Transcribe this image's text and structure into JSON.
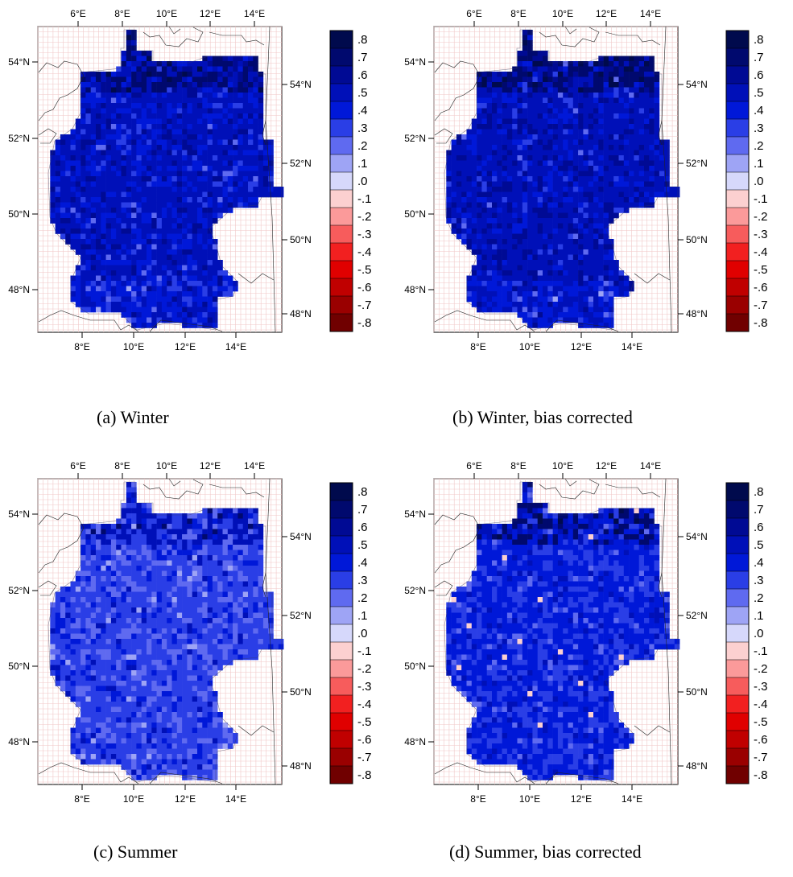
{
  "figure": {
    "panels": [
      {
        "id": "a",
        "caption": "(a) Winter",
        "tiles": [
          {
            "level": 0.5,
            "weight": 0.55
          },
          {
            "level": 0.4,
            "weight": 0.25
          },
          {
            "level": 0.6,
            "weight": 0.12
          },
          {
            "level": 0.3,
            "weight": 0.06
          },
          {
            "level": 0.2,
            "weight": 0.02
          }
        ],
        "north_tilt": 0.1,
        "south_tilt": -0.15
      },
      {
        "id": "b",
        "caption": "(b) Winter, bias corrected",
        "tiles": [
          {
            "level": 0.5,
            "weight": 0.6
          },
          {
            "level": 0.6,
            "weight": 0.2
          },
          {
            "level": 0.4,
            "weight": 0.14
          },
          {
            "level": 0.3,
            "weight": 0.05
          },
          {
            "level": 0.2,
            "weight": 0.01
          }
        ],
        "north_tilt": 0.1,
        "south_tilt": -0.15
      },
      {
        "id": "c",
        "caption": "(c) Summer",
        "tiles": [
          {
            "level": 0.3,
            "weight": 0.6
          },
          {
            "level": 0.2,
            "weight": 0.22
          },
          {
            "level": 0.4,
            "weight": 0.12
          },
          {
            "level": 0.5,
            "weight": 0.04
          },
          {
            "level": 0.1,
            "weight": 0.02
          }
        ],
        "north_tilt": 0.15,
        "south_tilt": -0.05
      },
      {
        "id": "d",
        "caption": "(d) Summer, bias corrected",
        "tiles": [
          {
            "level": 0.4,
            "weight": 0.55
          },
          {
            "level": 0.3,
            "weight": 0.3
          },
          {
            "level": 0.5,
            "weight": 0.08
          },
          {
            "level": 0.2,
            "weight": 0.06
          },
          {
            "level": -0.1,
            "weight": 0.01
          }
        ],
        "north_tilt": 0.15,
        "south_tilt": -0.05
      }
    ],
    "axes": {
      "top_ticks": [
        "6°E",
        "8°E",
        "10°E",
        "12°E",
        "14°E"
      ],
      "bottom_ticks": [
        "8°E",
        "10°E",
        "12°E",
        "14°E"
      ],
      "left_ticks": [
        "54°N",
        "52°N",
        "50°N",
        "48°N"
      ],
      "right_ticks": [
        "54°N",
        "52°N",
        "50°N",
        "48°N"
      ]
    },
    "colorbar": {
      "labels": [
        ".8",
        ".7",
        ".6",
        ".5",
        ".4",
        ".3",
        ".2",
        ".1",
        ".0",
        "-.1",
        "-.2",
        "-.3",
        "-.4",
        "-.5",
        "-.6",
        "-.7",
        "-.8"
      ],
      "colors": [
        "#000a4d",
        "#00096e",
        "#000a94",
        "#0010b8",
        "#0018d8",
        "#2a3ee6",
        "#5f6af0",
        "#9ea4f5",
        "#d6d8fb",
        "#fcd0d0",
        "#fb9a9a",
        "#f75c5c",
        "#f22020",
        "#e00000",
        "#c00000",
        "#9a0000",
        "#700000"
      ],
      "levels": [
        0.8,
        0.7,
        0.6,
        0.5,
        0.4,
        0.3,
        0.2,
        0.1,
        0.0,
        -0.1,
        -0.2,
        -0.3,
        -0.4,
        -0.5,
        -0.6,
        -0.7,
        -0.8
      ]
    }
  }
}
